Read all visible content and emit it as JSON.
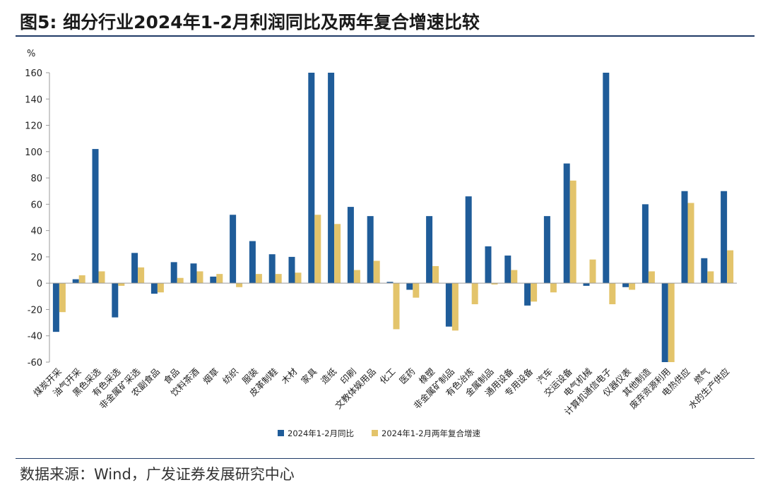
{
  "header": {
    "title": "图5:  细分行业2024年1-2月利润同比及两年复合增速比较"
  },
  "footer": {
    "source": "数据来源：Wind，广发证券发展研究中心"
  },
  "colors": {
    "series1": "#1f5c99",
    "series2": "#e3c46b",
    "axis": "#9a9a9a"
  },
  "chart_data": {
    "type": "bar",
    "ylabel": "%",
    "ylim": [
      -60,
      160
    ],
    "yticks": [
      -60,
      -40,
      -20,
      0,
      20,
      40,
      60,
      80,
      100,
      120,
      140,
      160
    ],
    "grid": false,
    "legend_position": "bottom",
    "categories": [
      "煤炭开采",
      "油气开采",
      "黑色采选",
      "有色采选",
      "非金属矿采选",
      "农副食品",
      "食品",
      "饮料茶酒",
      "烟草",
      "纺织",
      "服装",
      "皮革制鞋",
      "木材",
      "家具",
      "造纸",
      "印刷",
      "文教体娱用品",
      "化工",
      "医药",
      "橡塑",
      "非金属矿制品",
      "有色冶炼",
      "金属制品",
      "通用设备",
      "专用设备",
      "汽车",
      "交运设备",
      "电气机械",
      "计算机通信电子",
      "仪器仪表",
      "其他制造",
      "废弃资源利用",
      "电热供应",
      "燃气",
      "水的生产供应"
    ],
    "series": [
      {
        "name": "2024年1-2月同比",
        "values": [
          -37,
          3,
          102,
          -26,
          23,
          -8,
          16,
          15,
          5,
          52,
          32,
          22,
          20,
          160,
          160,
          58,
          51,
          1,
          -5,
          51,
          -33,
          66,
          28,
          21,
          -17,
          51,
          91,
          -2,
          160,
          -3,
          60,
          -60,
          70,
          19,
          70
        ]
      },
      {
        "name": "2024年1-2月两年复合增速",
        "values": [
          -22,
          6,
          9,
          -2,
          12,
          -7,
          4,
          9,
          7,
          -3,
          7,
          7,
          8,
          52,
          45,
          10,
          17,
          -35,
          -11,
          13,
          -36,
          -16,
          -1,
          10,
          -14,
          -7,
          78,
          18,
          -16,
          -5,
          9,
          -60,
          61,
          9,
          25
        ]
      }
    ]
  }
}
